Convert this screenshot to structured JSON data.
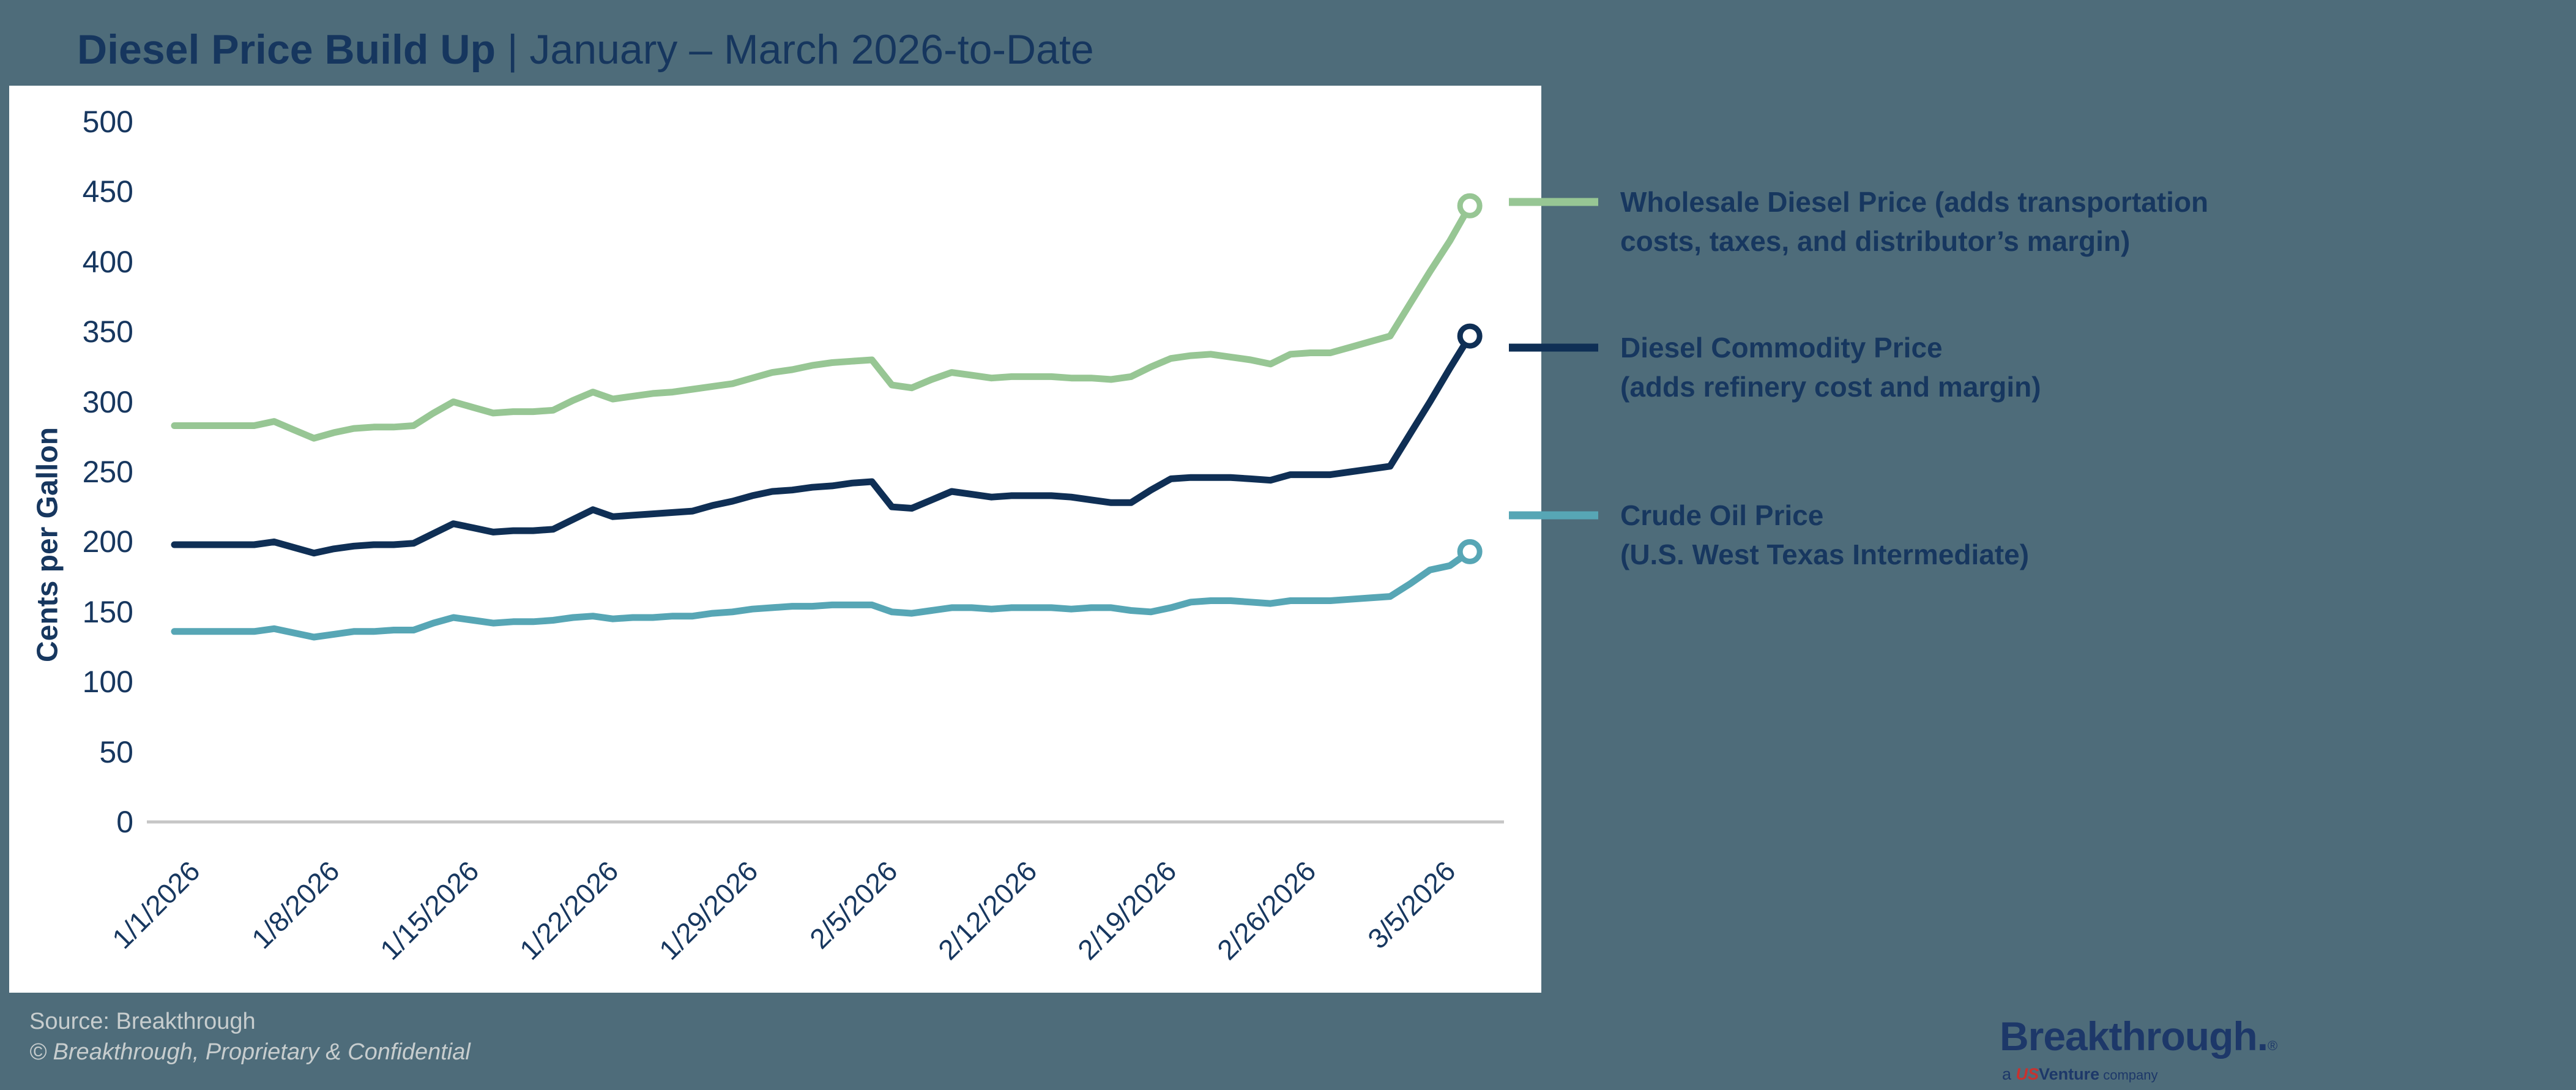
{
  "header": {
    "title_bold": "Diesel Price Build Up",
    "title_rest": " | January – March 2026-to-Date"
  },
  "chart_data": {
    "type": "line",
    "title": "Diesel Price Build Up | January – March 2026-to-Date",
    "xlabel": "",
    "ylabel": "Cents per Gallon",
    "ylim": [
      0,
      500
    ],
    "ytick_labels": [
      "500",
      "450",
      "400",
      "350",
      "300",
      "250",
      "200",
      "150",
      "100",
      "50",
      "0"
    ],
    "ytick_values": [
      500,
      450,
      400,
      350,
      300,
      250,
      200,
      150,
      100,
      50,
      0
    ],
    "grid": "off",
    "legend_position": "right",
    "x_unit": "daily values, day 0 = 1/1/2026 through 3/7/2026",
    "xtick_labels": [
      "1/1/2026",
      "1/8/2026",
      "1/15/2026",
      "1/22/2026",
      "1/29/2026",
      "2/5/2026",
      "2/12/2026",
      "2/19/2026",
      "2/26/2026",
      "3/5/2026"
    ],
    "xtick_day_offsets": [
      0,
      7,
      14,
      21,
      28,
      35,
      42,
      49,
      56,
      63
    ],
    "end_marker": "open-circle",
    "series": [
      {
        "name": "Wholesale Diesel Price (adds transportation costs, taxes, and distributor’s margin)",
        "color": "#97c694",
        "values": [
          283,
          283,
          283,
          283,
          283,
          286,
          280,
          274,
          278,
          281,
          282,
          282,
          283,
          292,
          300,
          296,
          292,
          293,
          293,
          294,
          301,
          307,
          302,
          304,
          306,
          307,
          309,
          311,
          313,
          317,
          321,
          323,
          326,
          328,
          329,
          330,
          312,
          310,
          316,
          321,
          319,
          317,
          318,
          318,
          318,
          317,
          317,
          316,
          318,
          325,
          331,
          333,
          334,
          332,
          330,
          327,
          334,
          335,
          335,
          339,
          343,
          347,
          370,
          393,
          415,
          440
        ]
      },
      {
        "name": "Diesel Commodity Price (adds refinery cost and margin)",
        "color": "#0f2f55",
        "values": [
          198,
          198,
          198,
          198,
          198,
          200,
          196,
          192,
          195,
          197,
          198,
          198,
          199,
          206,
          213,
          210,
          207,
          208,
          208,
          209,
          216,
          223,
          218,
          219,
          220,
          221,
          222,
          226,
          229,
          233,
          236,
          237,
          239,
          240,
          242,
          243,
          225,
          224,
          230,
          236,
          234,
          232,
          233,
          233,
          233,
          232,
          230,
          228,
          228,
          237,
          245,
          246,
          246,
          246,
          245,
          244,
          248,
          248,
          248,
          250,
          252,
          254,
          277,
          300,
          324,
          347
        ]
      },
      {
        "name": "Crude Oil Price (U.S. West Texas Intermediate)",
        "color": "#57a6b5",
        "values": [
          136,
          136,
          136,
          136,
          136,
          138,
          135,
          132,
          134,
          136,
          136,
          137,
          137,
          142,
          146,
          144,
          142,
          143,
          143,
          144,
          146,
          147,
          145,
          146,
          146,
          147,
          147,
          149,
          150,
          152,
          153,
          154,
          154,
          155,
          155,
          155,
          150,
          149,
          151,
          153,
          153,
          152,
          153,
          153,
          153,
          152,
          153,
          153,
          151,
          150,
          153,
          157,
          158,
          158,
          157,
          156,
          158,
          158,
          158,
          159,
          160,
          161,
          170,
          180,
          183,
          193
        ]
      }
    ]
  },
  "legend": {
    "items": [
      {
        "line1": "Wholesale Diesel Price (adds transportation",
        "line2": "costs, taxes, and distributor’s margin)",
        "color": "#97c694"
      },
      {
        "line1": "Diesel Commodity Price",
        "line2": "(adds refinery cost and margin)",
        "color": "#0f2f55"
      },
      {
        "line1": "Crude Oil Price",
        "line2": "(U.S. West Texas Intermediate)",
        "color": "#57a6b5"
      }
    ]
  },
  "footer": {
    "source": "Source: Breakthrough",
    "copyright": "© Breakthrough, Proprietary & Confidential"
  },
  "logo": {
    "brand": "Breakthrough.",
    "registered": "®",
    "sub_prefix": "a ",
    "sub_us": "US",
    "sub_venture": "Venture",
    "sub_company": " company"
  },
  "colors": {
    "background_slate": "#4e6c7a",
    "panel_white": "#ffffff",
    "text_navy": "#17375f",
    "axis_line_gray": "#c6c6c6",
    "footer_gray": "#c7cdce",
    "logo_navy": "#1d3869",
    "logo_red": "#c8322f"
  }
}
